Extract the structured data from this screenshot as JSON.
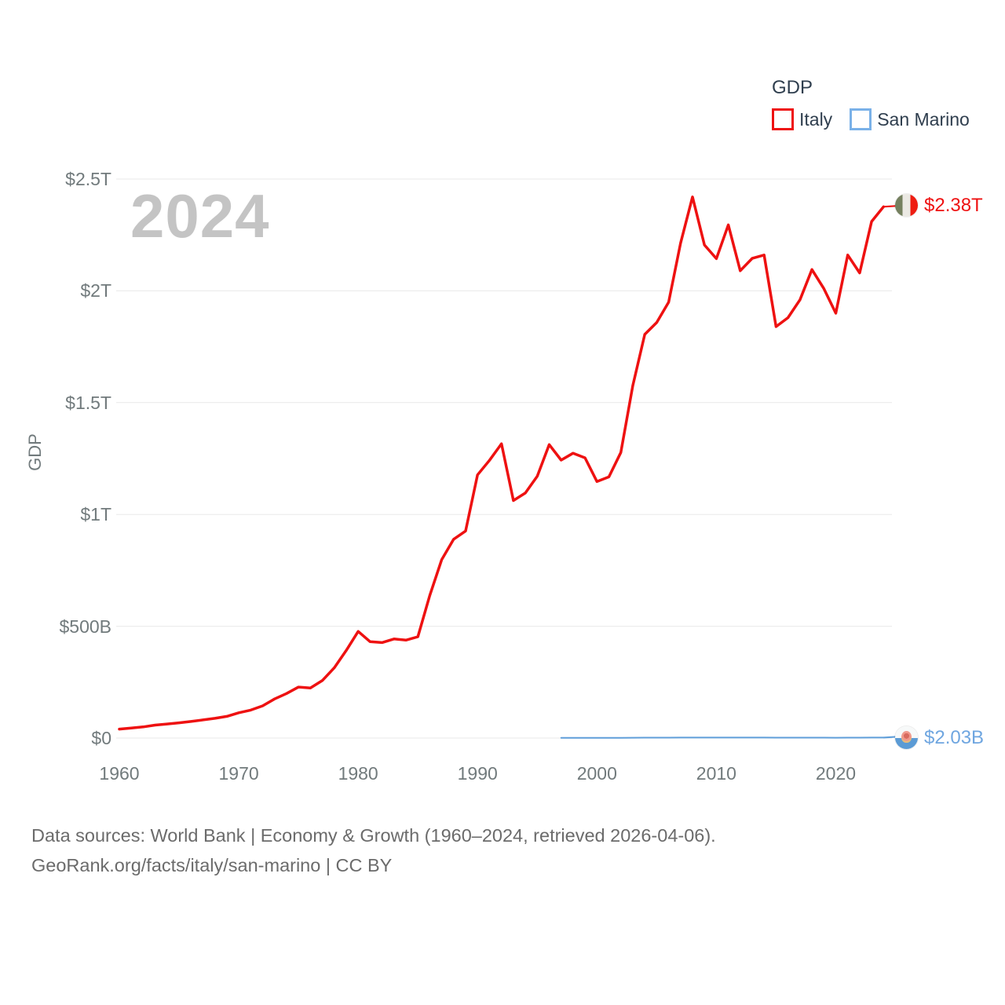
{
  "watermark_year": "2024",
  "legend": {
    "title": "GDP",
    "items": [
      {
        "label": "Italy",
        "swatch_color": "#ee1111"
      },
      {
        "label": "San Marino",
        "swatch_color": "#7ab1e8"
      }
    ]
  },
  "end_labels": {
    "italy": {
      "value": "$2.38T",
      "color": "#ee1111",
      "flag": "italy-flag"
    },
    "san_marino": {
      "value": "$2.03B",
      "color": "#6fa6e0",
      "flag": "san-marino-flag"
    }
  },
  "footer": {
    "line1": "Data sources: World Bank | Economy & Growth (1960–2024, retrieved 2026-04-06).",
    "line2": "GeoRank.org/facts/italy/san-marino | CC BY"
  },
  "chart_data": {
    "type": "line",
    "title": "GDP",
    "ylabel": "GDP",
    "units": "USD billions",
    "xlim": [
      1960,
      2024
    ],
    "ylim": [
      0,
      2500
    ],
    "grid": "horizontal",
    "legend_position": "top-right",
    "y_ticks": [
      {
        "label": "$0",
        "value": 0
      },
      {
        "label": "$500B",
        "value": 500
      },
      {
        "label": "$1T",
        "value": 1000
      },
      {
        "label": "$1.5T",
        "value": 1500
      },
      {
        "label": "$2T",
        "value": 2000
      },
      {
        "label": "$2.5T",
        "value": 2500
      }
    ],
    "x_ticks": [
      {
        "label": "1960",
        "value": 1960
      },
      {
        "label": "1970",
        "value": 1970
      },
      {
        "label": "1980",
        "value": 1980
      },
      {
        "label": "1990",
        "value": 1990
      },
      {
        "label": "2000",
        "value": 2000
      },
      {
        "label": "2010",
        "value": 2010
      },
      {
        "label": "2020",
        "value": 2020
      }
    ],
    "series": [
      {
        "name": "Italy",
        "color": "#ee1111",
        "width": 3.5,
        "x_start": 1960,
        "values": [
          40,
          45,
          50,
          58,
          63,
          68,
          74,
          81,
          88,
          97,
          113,
          125,
          144,
          175,
          199,
          228,
          224,
          257,
          314,
          392,
          477,
          431,
          427,
          443,
          438,
          453,
          638,
          798,
          889,
          926,
          1177,
          1242,
          1316,
          1062,
          1096,
          1171,
          1312,
          1243,
          1274,
          1253,
          1147,
          1168,
          1277,
          1575,
          1805,
          1858,
          1949,
          2213,
          2420,
          2205,
          2144,
          2295,
          2090,
          2145,
          2160,
          1840,
          1880,
          1960,
          2095,
          2010,
          1900,
          2160,
          2080,
          2310,
          2376
        ],
        "end_value_label": "$2.38T"
      },
      {
        "name": "San Marino",
        "color": "#5f9ed9",
        "width": 2,
        "x_start": 1997,
        "values": [
          0.78,
          0.85,
          0.87,
          0.88,
          0.97,
          1.08,
          1.39,
          1.62,
          1.7,
          1.85,
          2.12,
          2.27,
          2.25,
          2.14,
          2.28,
          2.0,
          1.98,
          1.99,
          1.7,
          1.59,
          1.66,
          1.79,
          1.74,
          1.56,
          1.86,
          1.86,
          1.99,
          2.03
        ],
        "end_value_label": "$2.03B"
      }
    ]
  }
}
